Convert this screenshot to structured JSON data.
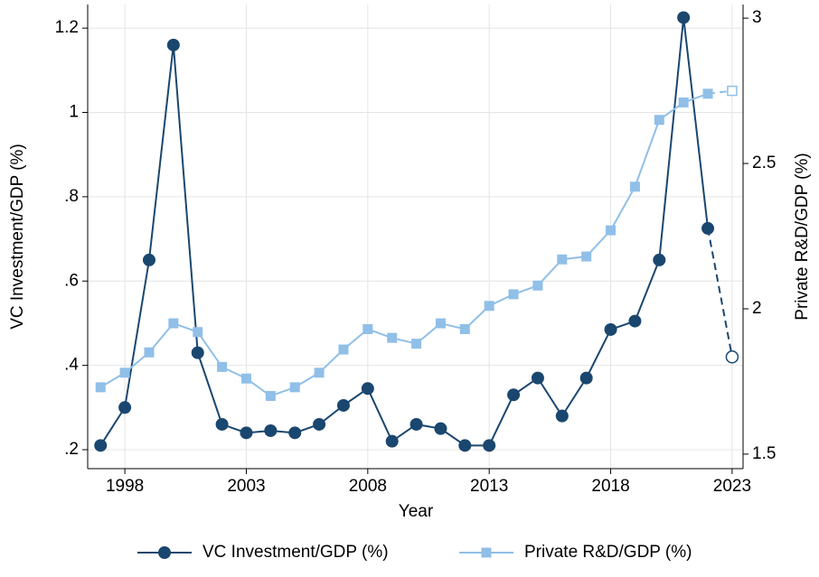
{
  "chart_data": {
    "type": "line",
    "x_label": "Year",
    "y_label": "VC Investment/GDP (%)",
    "y2_label": "Private R&D/GDP (%)",
    "x": [
      1997,
      1998,
      1999,
      2000,
      2001,
      2002,
      2003,
      2004,
      2005,
      2006,
      2007,
      2008,
      2009,
      2010,
      2011,
      2012,
      2013,
      2014,
      2015,
      2016,
      2017,
      2018,
      2019,
      2020,
      2021,
      2022,
      2023
    ],
    "series": [
      {
        "name": "VC Investment/GDP (%)",
        "color": "#1a476f",
        "marker": "circle",
        "values": [
          0.21,
          0.3,
          0.65,
          1.16,
          0.43,
          0.26,
          0.24,
          0.245,
          0.24,
          0.26,
          0.305,
          0.345,
          0.22,
          0.26,
          0.25,
          0.21,
          0.21,
          0.33,
          0.37,
          0.28,
          0.37,
          0.485,
          0.505,
          0.65,
          1.225,
          0.725,
          0.42
        ]
      },
      {
        "name": "Private R&D/GDP (%)",
        "color": "#90bfe8",
        "marker": "square",
        "axis": "y2",
        "values": [
          1.73,
          1.78,
          1.85,
          1.95,
          1.92,
          1.8,
          1.76,
          1.7,
          1.73,
          1.78,
          1.86,
          1.93,
          1.9,
          1.88,
          1.95,
          1.93,
          2.01,
          2.05,
          2.08,
          2.17,
          2.18,
          2.27,
          2.42,
          2.65,
          2.71,
          2.74,
          2.75
        ]
      }
    ],
    "estimated_last": true,
    "xlim": [
      1996.47,
      2023.45
    ],
    "xticks": [
      1998,
      2003,
      2008,
      2013,
      2018,
      2023
    ],
    "ylim": [
      0.155,
      1.256
    ],
    "yticks": [
      {
        "value": 0.2,
        "label": ".2"
      },
      {
        "value": 0.4,
        "label": ".4"
      },
      {
        "value": 0.6,
        "label": ".6"
      },
      {
        "value": 0.8,
        "label": ".8"
      },
      1,
      1.2
    ],
    "y2lim": [
      1.45,
      3.047
    ],
    "y2ticks": [
      1.5,
      2,
      2.5,
      3
    ],
    "grid": true,
    "legend": "bottom"
  }
}
